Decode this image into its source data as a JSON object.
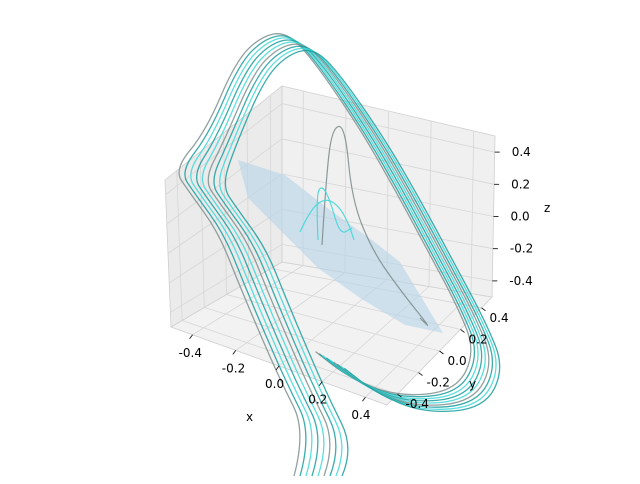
{
  "chart_data": {
    "type": "3d-line",
    "title": "",
    "xlabel": "x",
    "ylabel": "y",
    "zlabel": "z",
    "xlim": [
      -0.5,
      0.5
    ],
    "ylim": [
      -0.5,
      0.5
    ],
    "zlim": [
      -0.5,
      0.5
    ],
    "xticks": [
      "-0.4",
      "-0.2",
      "0.0",
      "0.2",
      "0.4"
    ],
    "yticks": [
      "-0.4",
      "-0.2",
      "0.0",
      "0.2",
      "0.4"
    ],
    "zticks": [
      "-0.4",
      "-0.2",
      "0.0",
      "0.2",
      "0.4"
    ],
    "grid": true,
    "colors": {
      "trajectory_dark": "#1a9e9e",
      "trajectory_light": "#40d8d8",
      "trajectory_gray": "#7f8f8f",
      "surface": "#b8d4ea",
      "pane": "#f2f2f2",
      "pane_side": "#e8e8e8",
      "grid": "#d6d6d6"
    }
  }
}
